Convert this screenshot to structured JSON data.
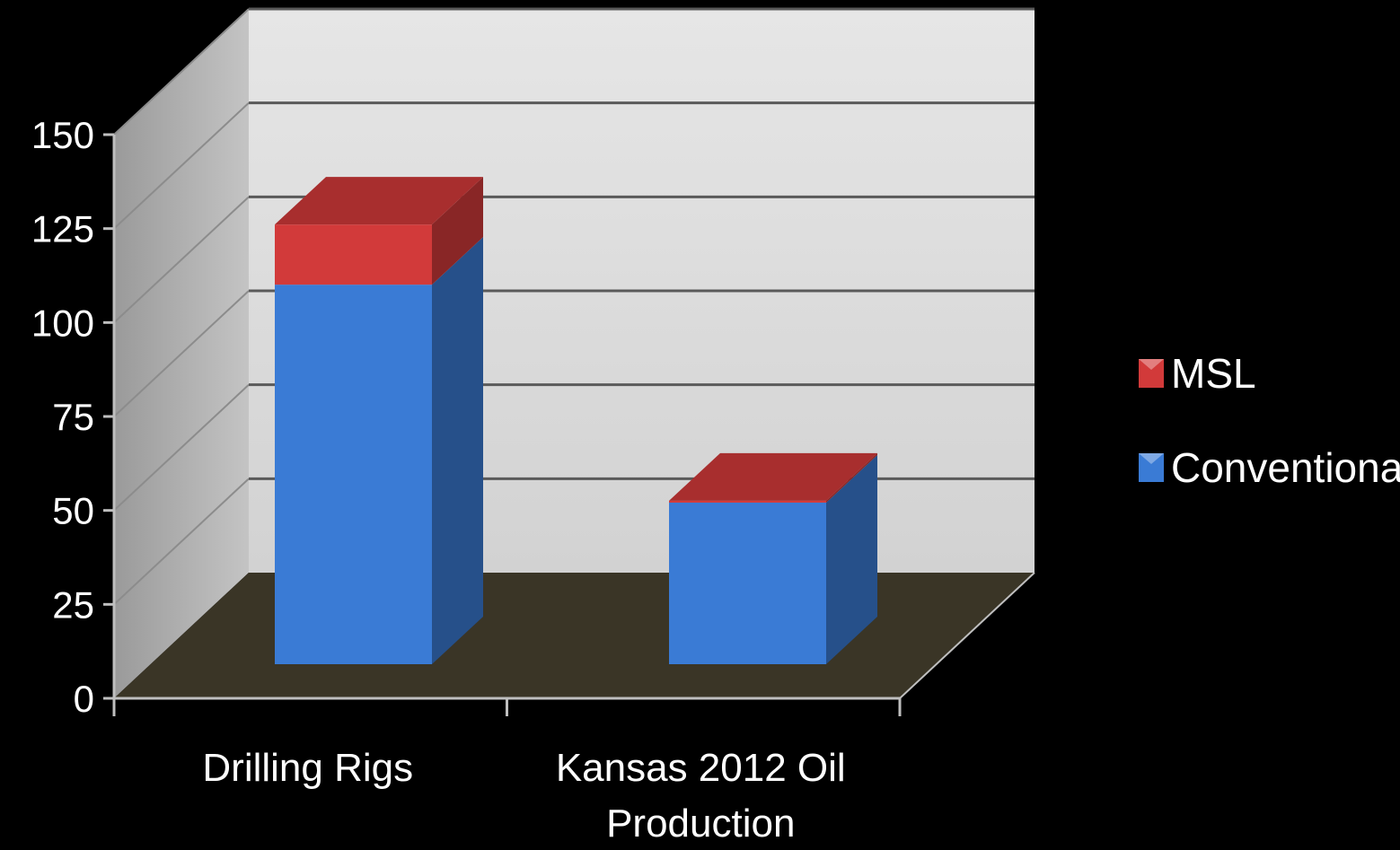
{
  "chart_data": {
    "type": "bar",
    "stacked": true,
    "three_d": true,
    "categories": [
      "Drilling Rigs",
      "Kansas 2012 Oil Production"
    ],
    "category_lines": [
      [
        "Drilling Rigs"
      ],
      [
        "Kansas 2012 Oil",
        "Production"
      ]
    ],
    "series": [
      {
        "name": "Conventional",
        "values": [
          101,
          43
        ],
        "color": "#3a7bd5"
      },
      {
        "name": "MSL",
        "values": [
          16,
          0.5
        ],
        "color": "#d23a3a"
      }
    ],
    "legend_order": [
      "MSL",
      "Conventional"
    ],
    "ylim": [
      0,
      150
    ],
    "yticks": [
      "0",
      "25",
      "50",
      "75",
      "100",
      "125",
      "150"
    ],
    "ytick_values": [
      0,
      25,
      50,
      75,
      100,
      125,
      150
    ],
    "title": "",
    "xlabel": "",
    "ylabel": "",
    "grid": true,
    "legend_position": "right",
    "colors": {
      "background": "#000000",
      "back_wall": "#dcdcdc",
      "side_wall": "#a9a9a9",
      "floor": "#3a3526",
      "gridline": "#5a5a5a"
    }
  }
}
